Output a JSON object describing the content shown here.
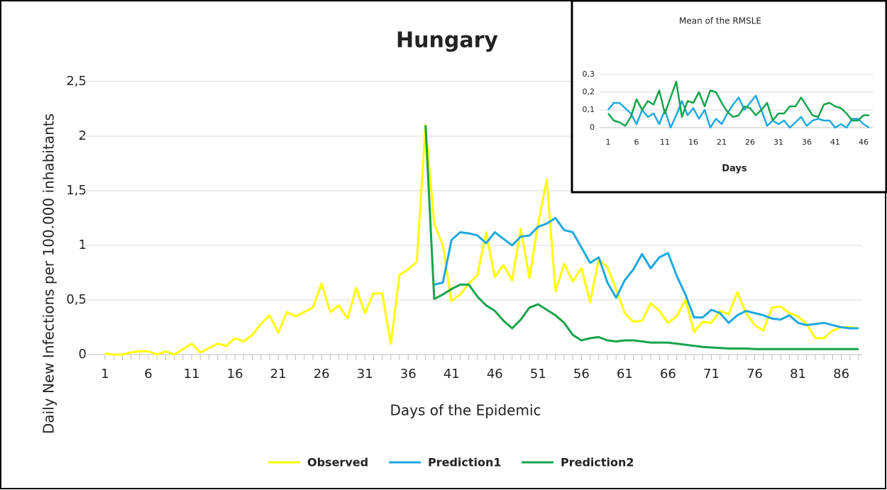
{
  "chart_data": [
    {
      "type": "line",
      "title": "Hungary",
      "x_label": "Days of the Epidemic",
      "y_label": "Daily New Infections per 100.000 inhabitants",
      "categories": [
        1,
        null,
        null,
        null,
        null,
        6,
        null,
        null,
        null,
        null,
        11,
        null,
        null,
        null,
        null,
        16,
        null,
        null,
        null,
        null,
        21,
        null,
        null,
        null,
        null,
        26,
        null,
        null,
        null,
        null,
        31,
        null,
        null,
        null,
        null,
        36,
        null,
        null,
        null,
        null,
        41,
        null,
        null,
        null,
        null,
        46,
        null,
        null,
        null,
        null,
        51,
        null,
        null,
        null,
        null,
        56,
        null,
        null,
        null,
        null,
        61,
        null,
        null,
        null,
        null,
        66,
        null,
        null,
        null,
        null,
        71,
        null,
        null,
        null,
        null,
        76,
        null,
        null,
        null,
        null,
        81,
        null,
        null,
        null,
        null,
        86,
        null,
        null
      ],
      "series": [
        {
          "name": "Observed",
          "color": "#ffff00",
          "values": [
            0.01,
            0,
            0,
            0.02,
            0.03,
            0.03,
            0,
            0.03,
            0,
            0.05,
            0.1,
            0.02,
            0.06,
            0.1,
            0.08,
            0.15,
            0.12,
            0.18,
            0.28,
            0.36,
            0.2,
            0.39,
            0.35,
            0.39,
            0.43,
            0.65,
            0.39,
            0.45,
            0.33,
            0.61,
            0.38,
            0.56,
            0.56,
            0.1,
            0.73,
            0.78,
            0.85,
            2.1,
            1.2,
            1.0,
            0.49,
            0.55,
            0.65,
            0.73,
            1.12,
            0.71,
            0.82,
            0.68,
            1.15,
            0.7,
            1.2,
            1.6,
            0.58,
            0.83,
            0.67,
            0.79,
            0.48,
            0.87,
            0.8,
            0.6,
            0.38,
            0.3,
            0.31,
            0.47,
            0.4,
            0.29,
            0.35,
            0.5,
            0.21,
            0.3,
            0.29,
            0.4,
            0.37,
            0.57,
            0.38,
            0.27,
            0.22,
            0.43,
            0.44,
            0.38,
            0.35,
            0.28,
            0.15,
            0.15,
            0.22,
            0.25,
            0.25,
            0.24
          ]
        },
        {
          "name": "Prediction1",
          "color": "#1ea8e0",
          "values": [
            null,
            null,
            null,
            null,
            null,
            null,
            null,
            null,
            null,
            null,
            null,
            null,
            null,
            null,
            null,
            null,
            null,
            null,
            null,
            null,
            null,
            null,
            null,
            null,
            null,
            null,
            null,
            null,
            null,
            null,
            null,
            null,
            null,
            null,
            null,
            null,
            null,
            null,
            0.64,
            0.66,
            1.05,
            1.12,
            1.11,
            1.09,
            1.02,
            1.12,
            1.06,
            1.0,
            1.08,
            1.09,
            1.17,
            1.2,
            1.25,
            1.14,
            1.12,
            0.98,
            0.84,
            0.89,
            0.66,
            0.52,
            0.68,
            0.78,
            0.92,
            0.79,
            0.89,
            0.93,
            0.72,
            0.55,
            0.34,
            0.34,
            0.41,
            0.38,
            0.29,
            0.36,
            0.4,
            0.38,
            0.36,
            0.33,
            0.32,
            0.36,
            0.29,
            0.27,
            0.28,
            0.29,
            0.27,
            0.25,
            0.24,
            0.24
          ]
        },
        {
          "name": "Prediction2",
          "color": "#16a34a",
          "values": [
            null,
            null,
            null,
            null,
            null,
            null,
            null,
            null,
            null,
            null,
            null,
            null,
            null,
            null,
            null,
            null,
            null,
            null,
            null,
            null,
            null,
            null,
            null,
            null,
            null,
            null,
            null,
            null,
            null,
            null,
            null,
            null,
            null,
            null,
            null,
            null,
            null,
            2.1,
            0.51,
            0.55,
            0.6,
            0.64,
            0.64,
            0.53,
            0.45,
            0.4,
            0.31,
            0.24,
            0.32,
            0.43,
            0.46,
            0.41,
            0.36,
            0.29,
            0.18,
            0.13,
            0.15,
            0.16,
            0.13,
            0.12,
            0.13,
            0.13,
            0.12,
            0.11,
            0.11,
            0.11,
            0.1,
            0.09,
            0.08,
            0.07,
            0.065,
            0.06,
            0.055,
            0.055,
            0.055,
            0.05,
            0.05,
            0.05,
            0.05,
            0.05,
            0.05,
            0.05,
            0.05,
            0.05,
            0.05,
            0.05,
            0.05,
            0.05
          ]
        }
      ],
      "ylim": [
        0,
        2.5
      ],
      "yticks": [
        0,
        {
          "value": 0.5,
          "label": "0,5"
        },
        1,
        {
          "value": 1.5,
          "label": "1,5"
        },
        2,
        {
          "value": 2.5,
          "label": "2,5"
        }
      ],
      "grid": true,
      "legend": "bottom"
    },
    {
      "type": "line",
      "title": "Mean of the RMSLE",
      "x_label": "Days",
      "categories": [
        1,
        null,
        null,
        null,
        null,
        6,
        null,
        null,
        null,
        null,
        11,
        null,
        null,
        null,
        null,
        16,
        null,
        null,
        null,
        null,
        21,
        null,
        null,
        null,
        null,
        26,
        null,
        null,
        null,
        null,
        31,
        null,
        null,
        null,
        null,
        36,
        null,
        null,
        null,
        null,
        41,
        null,
        null,
        null,
        null,
        46,
        null
      ],
      "series": [
        {
          "color": "#1ea8e0",
          "values": [
            0.1,
            0.14,
            0.14,
            0.11,
            0.08,
            0.02,
            0.1,
            0.06,
            0.08,
            0.02,
            0.1,
            0,
            0.07,
            0.15,
            0.07,
            0.11,
            0.05,
            0.1,
            0,
            0.05,
            0.02,
            0.08,
            0.13,
            0.17,
            0.1,
            0.14,
            0.18,
            0.1,
            0.01,
            0.04,
            0.02,
            0.04,
            0,
            0.03,
            0.06,
            0.01,
            0.04,
            0.05,
            0.04,
            0.04,
            0,
            0.02,
            0,
            0.05,
            0.05,
            0.02,
            0
          ]
        },
        {
          "color": "#16a34a",
          "values": [
            0.08,
            0.04,
            0.03,
            0.01,
            0.06,
            0.16,
            0.1,
            0.15,
            0.13,
            0.21,
            0.08,
            0.17,
            0.26,
            0.06,
            0.15,
            0.14,
            0.2,
            0.12,
            0.21,
            0.2,
            0.14,
            0.09,
            0.06,
            0.07,
            0.12,
            0.11,
            0.07,
            0.1,
            0.14,
            0.04,
            0.08,
            0.08,
            0.12,
            0.12,
            0.17,
            0.12,
            0.07,
            0.06,
            0.13,
            0.14,
            0.12,
            0.11,
            0.08,
            0.04,
            0.04,
            0.07,
            0.07
          ]
        }
      ],
      "ylim": [
        0,
        0.3
      ],
      "yticks": [
        0,
        {
          "value": 0.1,
          "label": "0,1"
        },
        {
          "value": 0.2,
          "label": "0,2"
        },
        {
          "value": 0.3,
          "label": "0,3"
        }
      ],
      "grid": true
    }
  ]
}
